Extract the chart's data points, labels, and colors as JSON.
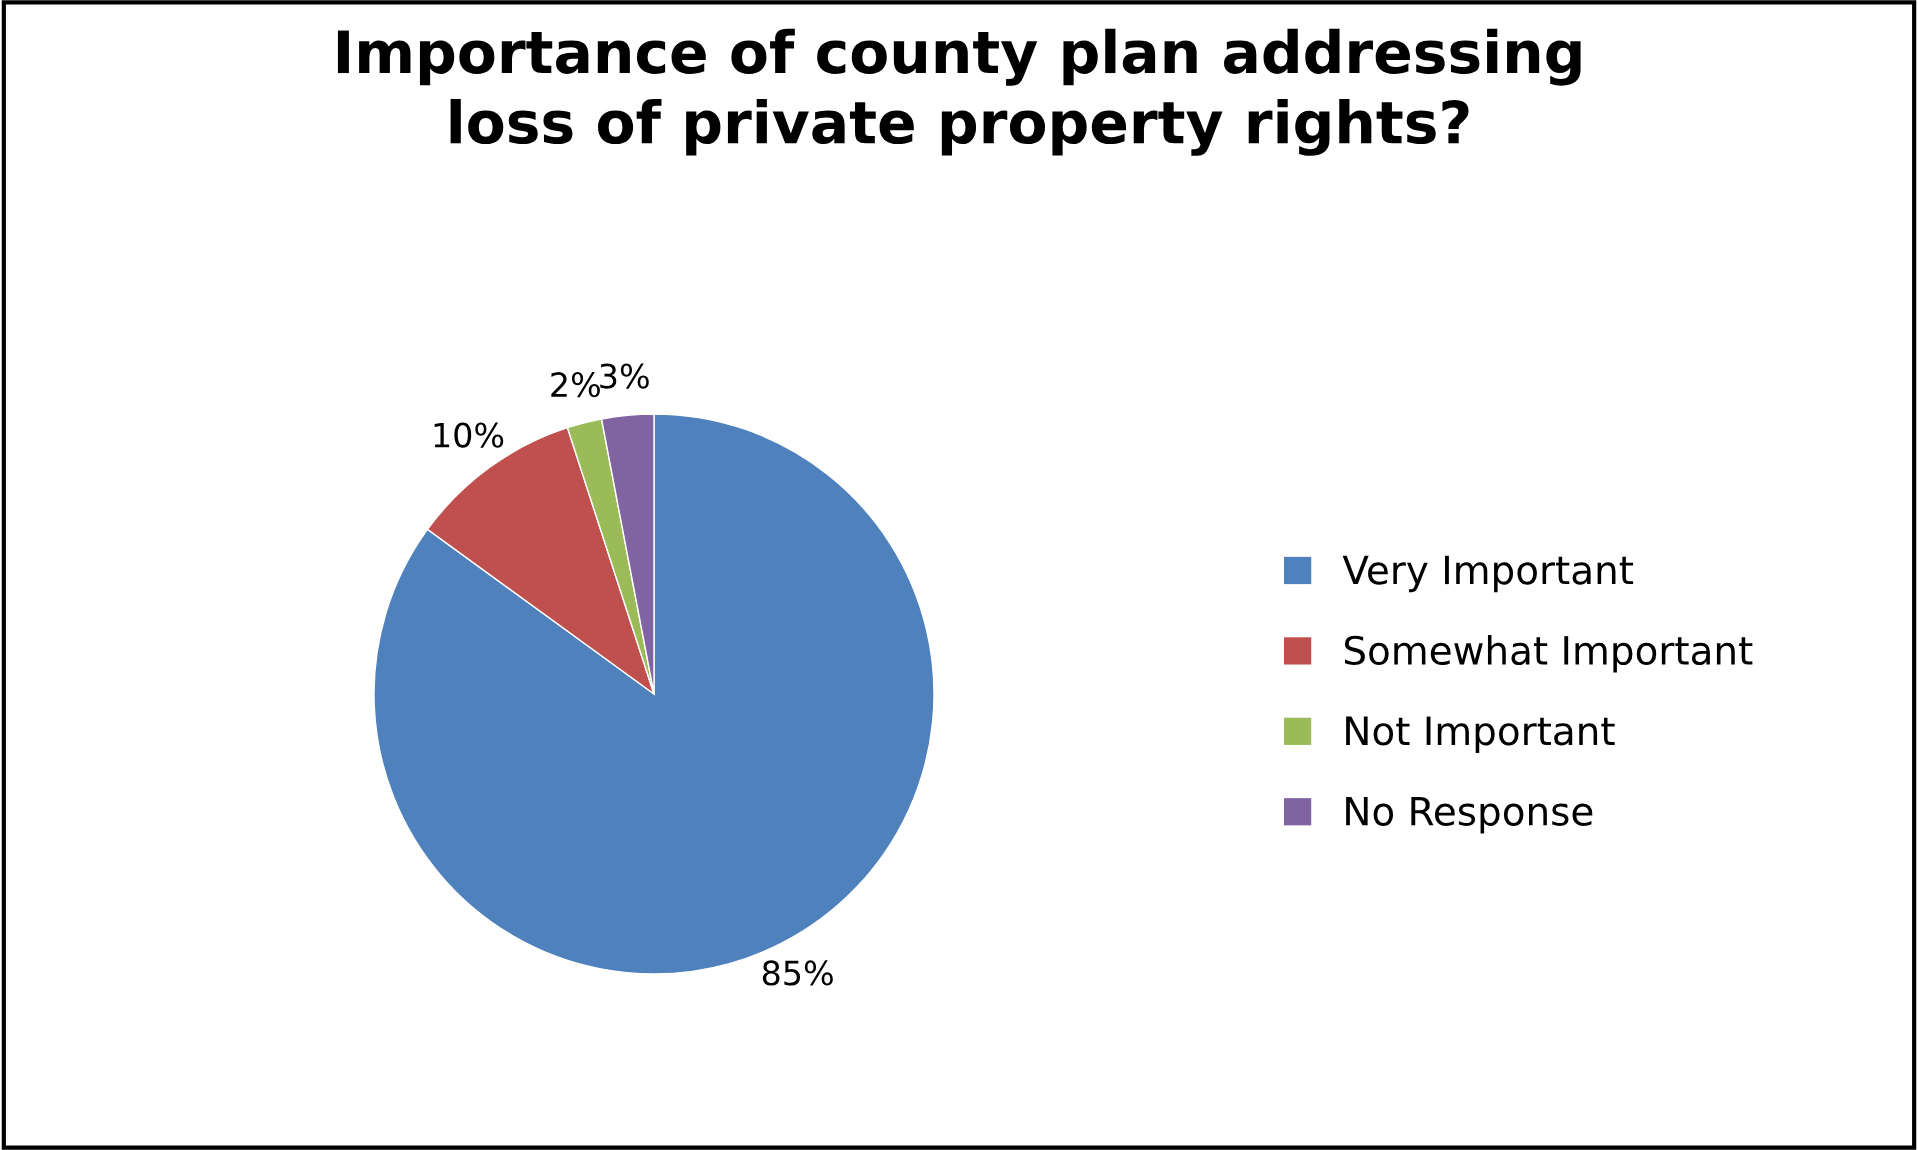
{
  "chart_data": {
    "type": "pie",
    "title": "Importance of county plan addressing\nloss of private property rights?",
    "categories": [
      "Very Important",
      "Somewhat Important",
      "Not Important",
      "No Response"
    ],
    "values": [
      85,
      10,
      2,
      3
    ],
    "colors": [
      "#4f81bd",
      "#c0504d",
      "#9bbb59",
      "#8064a2"
    ],
    "value_labels": [
      "85%",
      "10%",
      "2%",
      "3%"
    ],
    "legend": "right"
  }
}
